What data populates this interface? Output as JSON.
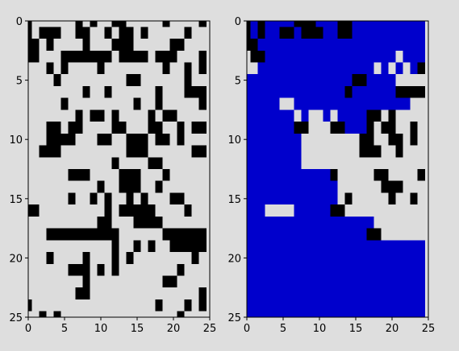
{
  "figure": {
    "background": "#dedede"
  },
  "chart_data": [
    {
      "type": "heatmap",
      "title": "",
      "xlabel": "",
      "ylabel": "",
      "xlim": [
        0,
        25
      ],
      "ylim": [
        25,
        0
      ],
      "xticks": [
        0,
        5,
        10,
        15,
        20,
        25
      ],
      "yticks": [
        0,
        5,
        10,
        15,
        20,
        25
      ],
      "grid": false,
      "legend": "none",
      "colors": {
        "0": "#000000",
        "1": "#dcdcdc"
      },
      "values": [
        "0111111010110011111011110",
        "0100011001101001011111011",
        "0010111101110001111100111",
        "0011100000001000010001110",
        "1110101111011111111011010",
        "1111011111111100111111011",
        "1111111101101111110111000",
        "1111101111111110110111110",
        "1111111010010111101001111",
        "1110010011110011100110100",
        "1110000111001100010010111",
        "1100011111111100011111100",
        "1111111111110111100111111",
        "1111110001111000111011111",
        "1111111111011000110111111",
        "1111110110101101011100111",
        "0011111111101000001111011",
        "1111111111001110000111111",
        "1110000000000111111000000",
        "1111111111110110101100000",
        "1110111101110101111111101",
        "1111110001010111111110111",
        "1111111101111111111001111",
        "1111111001111111111111110",
        "0111111111111111110111010",
        "1101011111111111111110111"
      ]
    },
    {
      "type": "heatmap",
      "title": "",
      "xlabel": "",
      "ylabel": "",
      "xlim": [
        0,
        25
      ],
      "ylim": [
        25,
        0
      ],
      "xticks": [
        0,
        5,
        10,
        15,
        20,
        25
      ],
      "yticks": [
        0,
        5,
        10,
        15,
        20,
        25
      ],
      "grid": false,
      "legend": "none",
      "colors": {
        "0": "#000000",
        "1": "#dcdcdc",
        "2": "#0000cc"
      },
      "values": [
        "0202222000222002222222222",
        "0202200200022002222222222",
        "0022222222222222222222222",
        "1002222222222222222221222",
        "1122222222222222221212120",
        "2222222222222220022221111",
        "2222222222222202222220000",
        "2222211222222222222222211",
        "2222222121121222200101111",
        "2222222001110022201001101",
        "2222222211111111001100101",
        "2222222211111111000110111",
        "2222222211111111111111111",
        "2222222222220111110011110",
        "2222222222222111111000111",
        "2222222222222101111101101",
        "2221111222220011111111111",
        "2222222222222222221111111",
        "2222222222222222200111111",
        "2222222222222222222222222",
        "2222222222222222222222222",
        "2222222222222222222222222",
        "2222222222222222222222222",
        "2222222222222222222222222",
        "2222222222222222222222222",
        "2222222222222222222222222"
      ]
    }
  ]
}
